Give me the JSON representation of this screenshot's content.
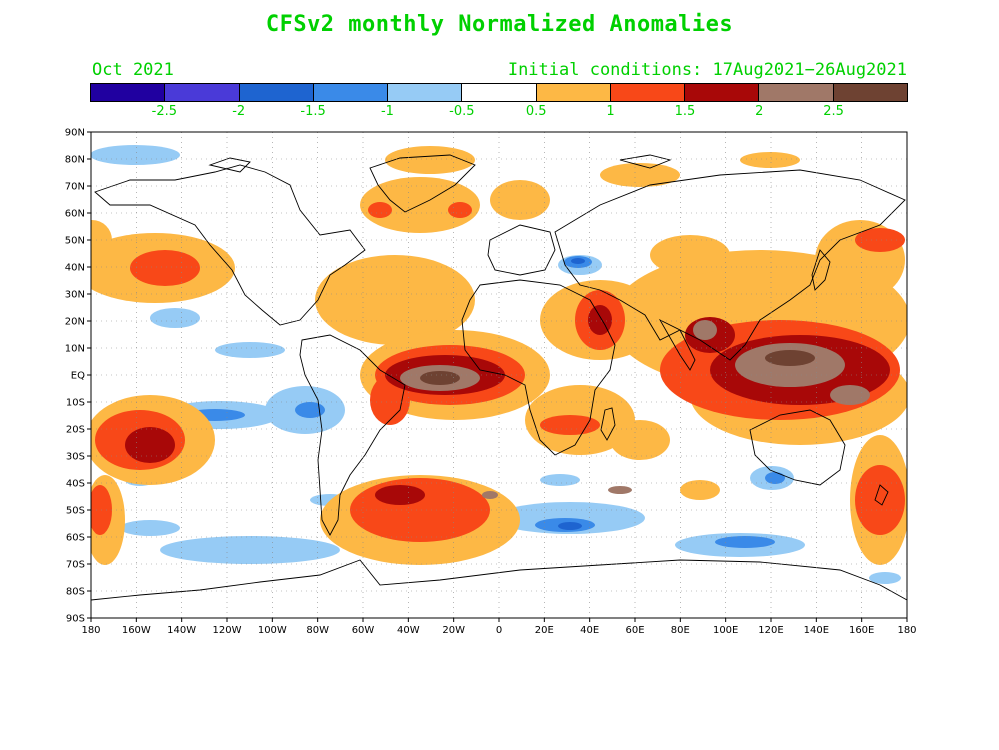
{
  "title": "CFSv2 monthly Normalized Anomalies",
  "month": "Oct 2021",
  "initial_conditions": "Initial conditions: 17Aug2021−26Aug2021",
  "colorbar": {
    "colors": [
      "#2000a0",
      "#4a3ad8",
      "#1e64d0",
      "#3a8ae8",
      "#96cbf5",
      "#ffffff",
      "#fdb845",
      "#f84818",
      "#a80808",
      "#a07868",
      "#6e4232"
    ],
    "labels": [
      "-2.5",
      "-2",
      "-1.5",
      "-1",
      "-0.5",
      "0.5",
      "1",
      "1.5",
      "2",
      "2.5"
    ]
  },
  "map": {
    "lat_labels": [
      "90N",
      "80N",
      "70N",
      "60N",
      "50N",
      "40N",
      "30N",
      "20N",
      "10N",
      "EQ",
      "10S",
      "20S",
      "30S",
      "40S",
      "50S",
      "60S",
      "70S",
      "80S",
      "90S"
    ],
    "lon_labels": [
      "180",
      "160W",
      "140W",
      "120W",
      "100W",
      "80W",
      "60W",
      "40W",
      "20W",
      "0",
      "20E",
      "40E",
      "60E",
      "80E",
      "100E",
      "120E",
      "140E",
      "160E",
      "180"
    ]
  }
}
